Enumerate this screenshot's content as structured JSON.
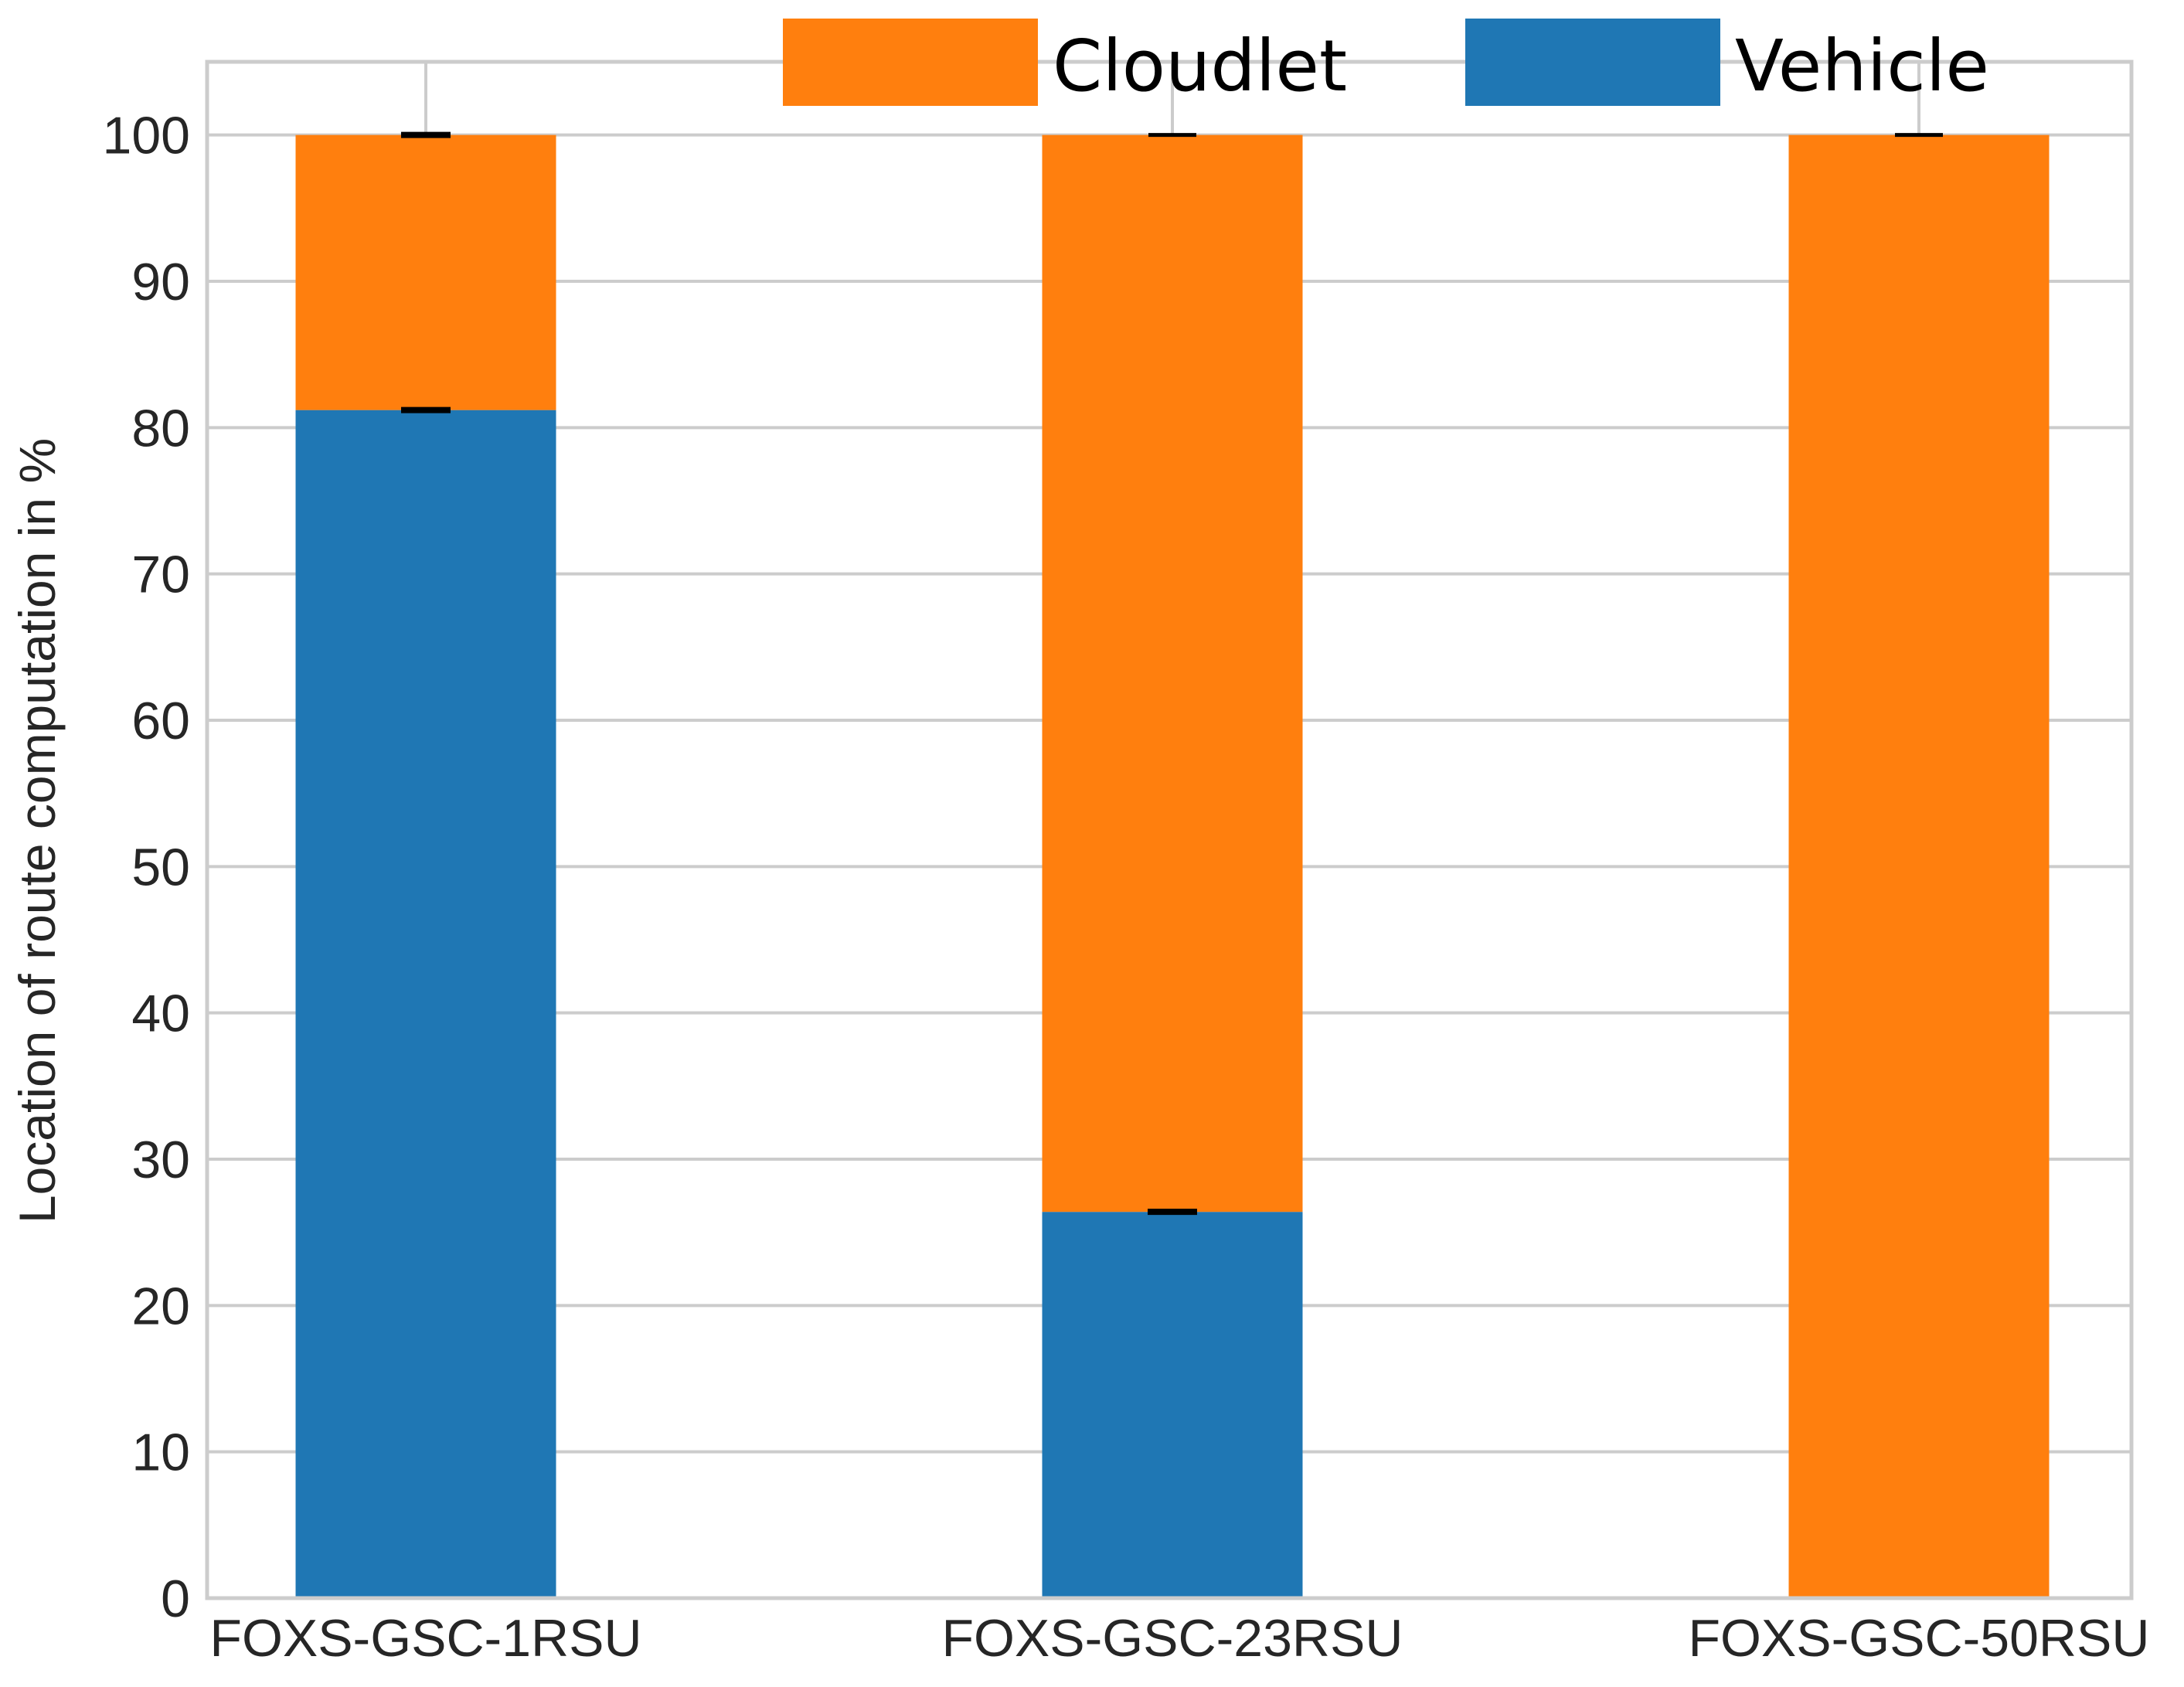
{
  "chart_data": {
    "type": "bar",
    "stacked": true,
    "categories": [
      "FOXS-GSC-1RSU",
      "FOXS-GSC-23RSU",
      "FOXS-GSC-50RSU"
    ],
    "series": [
      {
        "name": "Vehicle",
        "color": "#1f77b4",
        "values": [
          81.2,
          26.4,
          0
        ]
      },
      {
        "name": "Cloudlet",
        "color": "#ff7f0e",
        "values": [
          18.8,
          73.6,
          100
        ]
      }
    ],
    "error_bar_tops": [
      [
        81.2,
        26.4,
        0
      ],
      [
        100,
        100,
        100
      ]
    ],
    "title": "",
    "xlabel": "",
    "ylabel": "Location of route computation in %",
    "ylim": [
      0,
      105
    ],
    "yticks": [
      0,
      10,
      20,
      30,
      40,
      50,
      60,
      70,
      80,
      90,
      100
    ],
    "grid": true,
    "legend": {
      "placement": "top-center",
      "order": [
        "Cloudlet",
        "Vehicle"
      ]
    }
  }
}
